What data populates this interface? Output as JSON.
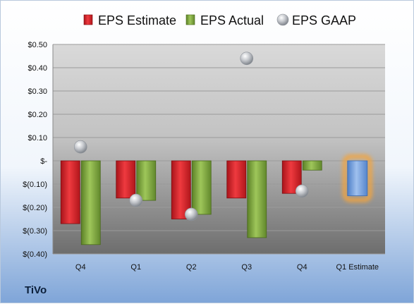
{
  "company": "TiVo",
  "chart_data": {
    "type": "bar",
    "categories": [
      "Q4",
      "Q1",
      "Q2",
      "Q3",
      "Q4",
      "Q1 Estimate"
    ],
    "series": [
      {
        "name": "EPS Estimate",
        "values": [
          -0.27,
          -0.16,
          -0.25,
          -0.16,
          -0.14,
          null
        ],
        "color": "#d9262b"
      },
      {
        "name": "EPS Actual",
        "values": [
          -0.36,
          -0.17,
          -0.23,
          -0.33,
          -0.04,
          null
        ],
        "color": "#7ea642"
      },
      {
        "name": "EPS GAAP",
        "values": [
          0.06,
          -0.17,
          -0.23,
          0.44,
          -0.13,
          null
        ],
        "color": "#b8bcc2",
        "marker": "sphere"
      }
    ],
    "estimate": {
      "category": "Q1 Estimate",
      "value": -0.15,
      "color": "#6f9ad8",
      "glow": "#f5a43a"
    },
    "ylim": [
      -0.4,
      0.5
    ],
    "yticks": [
      {
        "v": 0.5,
        "label": "$0.50"
      },
      {
        "v": 0.4,
        "label": "$0.40"
      },
      {
        "v": 0.3,
        "label": "$0.30"
      },
      {
        "v": 0.2,
        "label": "$0.20"
      },
      {
        "v": 0.1,
        "label": "$0.10"
      },
      {
        "v": 0.0,
        "label": "$-"
      },
      {
        "v": -0.1,
        "label": "$(0.10)"
      },
      {
        "v": -0.2,
        "label": "$(0.20)"
      },
      {
        "v": -0.3,
        "label": "$(0.30)"
      },
      {
        "v": -0.4,
        "label": "$(0.40)"
      }
    ],
    "grid": true,
    "legend": "top"
  }
}
